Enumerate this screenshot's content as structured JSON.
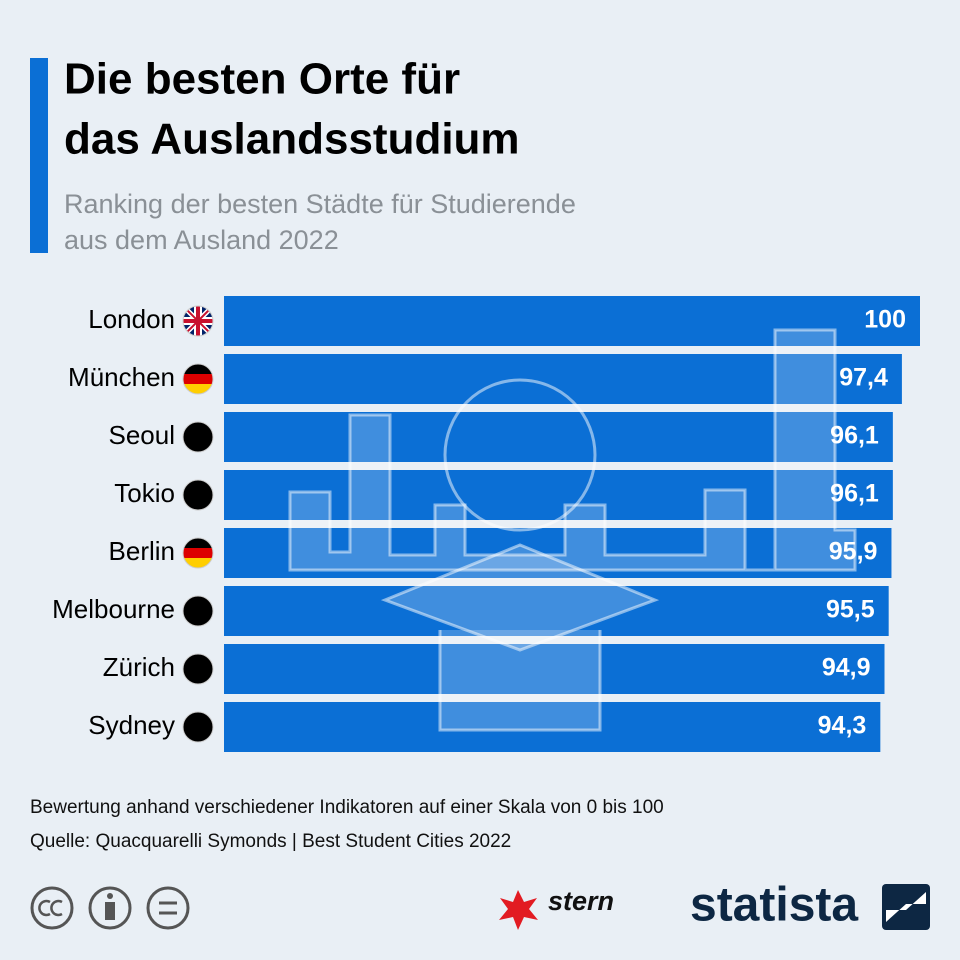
{
  "chart_data": {
    "type": "bar",
    "orientation": "horizontal",
    "title": "Die besten Orte für das Auslandsstudium",
    "title_lines": [
      "Die besten Orte für",
      "das Auslandsstudium"
    ],
    "subtitle_lines": [
      "Ranking der besten Städte für Studierende",
      "aus dem Ausland 2022"
    ],
    "categories": [
      "London",
      "München",
      "Seoul",
      "Tokio",
      "Berlin",
      "Melbourne",
      "Zürich",
      "Sydney"
    ],
    "values": [
      100,
      97.4,
      96.1,
      96.1,
      95.9,
      95.5,
      94.9,
      94.3
    ],
    "value_labels": [
      "100",
      "97,4",
      "96,1",
      "96,1",
      "95,9",
      "95,5",
      "94,9",
      "94,3"
    ],
    "color": "#0b6fd5",
    "xlim": [
      0,
      100
    ],
    "note": "Bewertung anhand verschiedener Indikatoren auf einer Skala von 0 bis 100",
    "source": "Quelle: Quacquarelli Symonds | Best Student Cities 2022",
    "logos": [
      "stern",
      "statista"
    ]
  }
}
